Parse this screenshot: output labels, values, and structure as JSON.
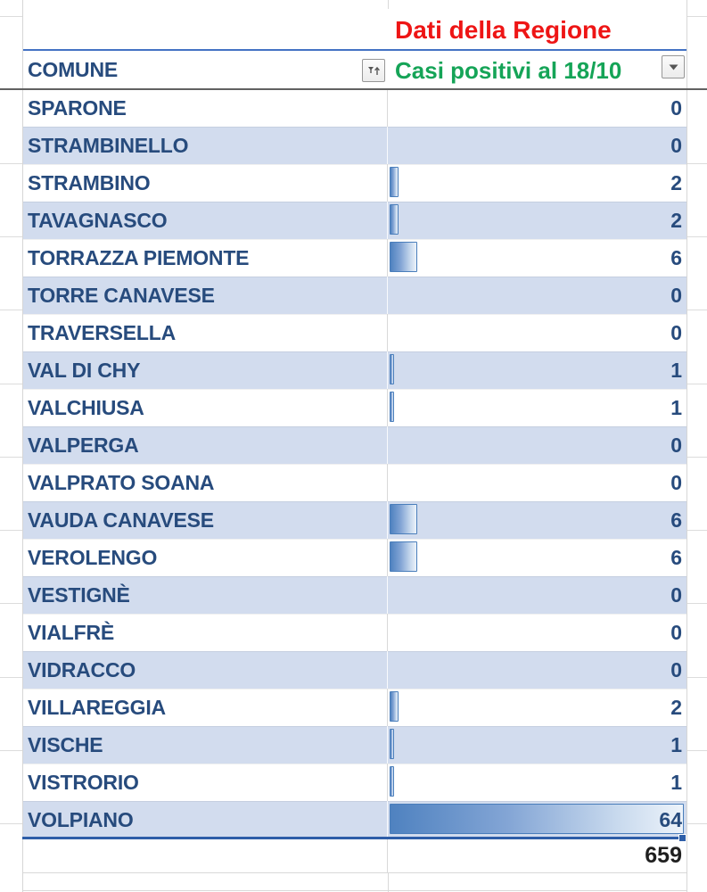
{
  "table": {
    "region_title": "Dati della Regione",
    "comune_header": "COMUNE",
    "cases_header": "Casi positivi al 18/10",
    "rows": [
      {
        "name": "SPARONE",
        "value": 0
      },
      {
        "name": "STRAMBINELLO",
        "value": 0
      },
      {
        "name": "STRAMBINO",
        "value": 2
      },
      {
        "name": "TAVAGNASCO",
        "value": 2
      },
      {
        "name": "TORRAZZA PIEMONTE",
        "value": 6
      },
      {
        "name": "TORRE CANAVESE",
        "value": 0
      },
      {
        "name": "TRAVERSELLA",
        "value": 0
      },
      {
        "name": "VAL DI CHY",
        "value": 1
      },
      {
        "name": "VALCHIUSA",
        "value": 1
      },
      {
        "name": "VALPERGA",
        "value": 0
      },
      {
        "name": "VALPRATO SOANA",
        "value": 0
      },
      {
        "name": "VAUDA CANAVESE",
        "value": 6
      },
      {
        "name": "VEROLENGO",
        "value": 6
      },
      {
        "name": "VESTIGNÈ",
        "value": 0
      },
      {
        "name": "VIALFRÈ",
        "value": 0
      },
      {
        "name": "VIDRACCO",
        "value": 0
      },
      {
        "name": "VILLAREGGIA",
        "value": 2
      },
      {
        "name": "VISCHE",
        "value": 1
      },
      {
        "name": "VISTRORIO",
        "value": 1
      },
      {
        "name": "VOLPIANO",
        "value": 64
      }
    ],
    "total": 659
  },
  "icons": {
    "comune_filter": "sort-ascending-filter-icon",
    "cases_filter": "dropdown-arrow-icon"
  },
  "colors": {
    "title_red": "#ee1515",
    "header_green": "#15a457",
    "cell_text_navy": "#274b7d",
    "row_band": "#d2dcee",
    "bar_border": "#4a7ebb",
    "bar_fill_dark": "#4f82c0",
    "bar_fill_light": "#edf3fa",
    "header_rule_blue": "#4472c4",
    "selection_blue": "#2e5ea8",
    "total_text": "#1f1f1f"
  }
}
